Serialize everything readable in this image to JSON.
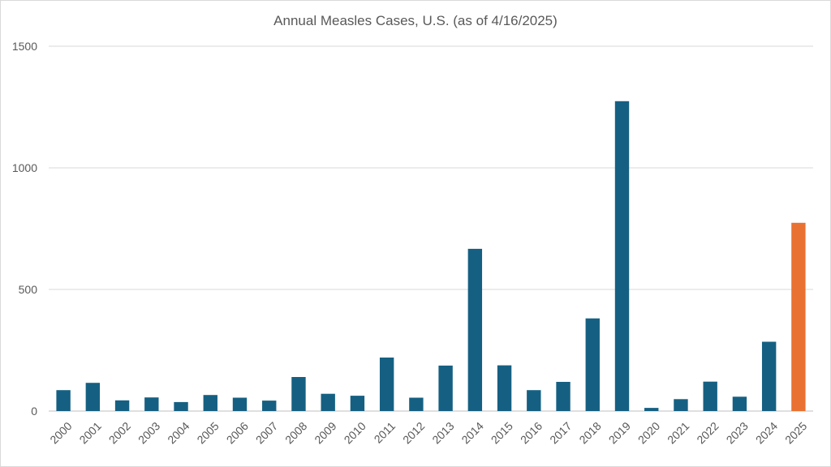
{
  "chart_data": {
    "type": "bar",
    "title": "Annual Measles Cases, U.S. (as of 4/16/2025)",
    "xlabel": "",
    "ylabel": "",
    "ylim": [
      0,
      1500
    ],
    "yticks": [
      0,
      500,
      1000,
      1500
    ],
    "grid": true,
    "legend": "none",
    "categories": [
      "2000",
      "2001",
      "2002",
      "2003",
      "2004",
      "2005",
      "2006",
      "2007",
      "2008",
      "2009",
      "2010",
      "2011",
      "2012",
      "2013",
      "2014",
      "2015",
      "2016",
      "2017",
      "2018",
      "2019",
      "2020",
      "2021",
      "2022",
      "2023",
      "2024",
      "2025"
    ],
    "values": [
      86,
      116,
      44,
      56,
      37,
      66,
      55,
      43,
      140,
      71,
      63,
      220,
      55,
      187,
      667,
      188,
      86,
      120,
      381,
      1274,
      13,
      49,
      121,
      59,
      285,
      774
    ],
    "colors": {
      "default": "#156082",
      "highlight": "#e97132",
      "highlight_category": "2025",
      "grid": "#d9d9d9",
      "axis": "#bfbfbf",
      "text": "#595959"
    }
  }
}
